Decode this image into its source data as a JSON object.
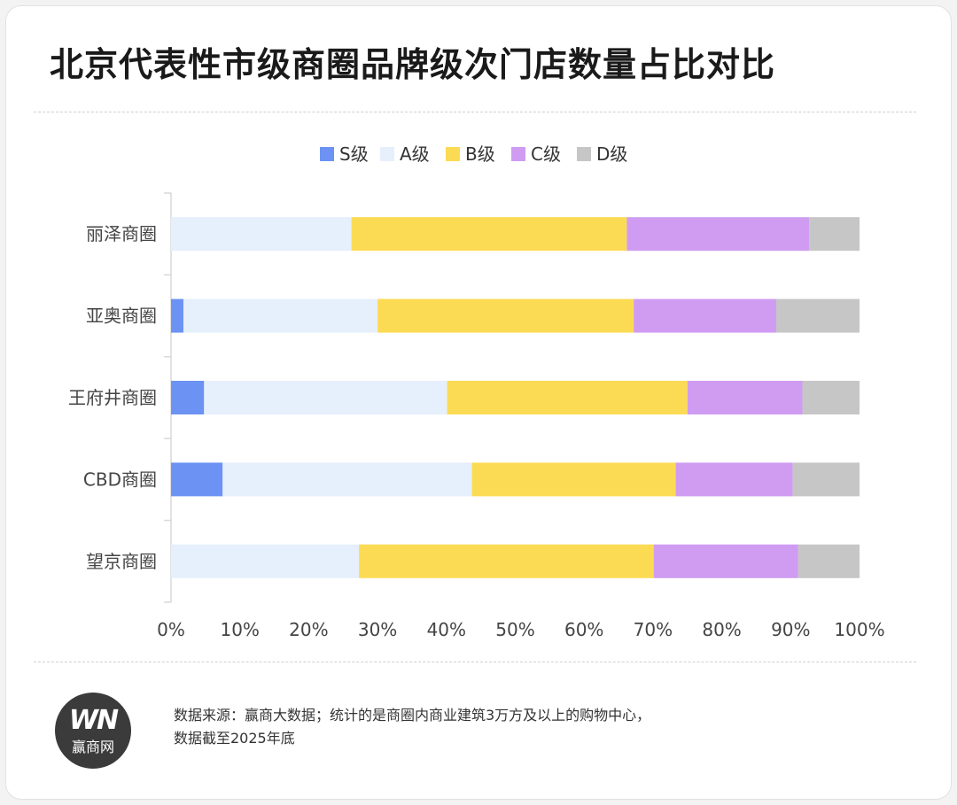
{
  "chart_data": {
    "type": "bar",
    "orientation": "horizontal",
    "stacked": true,
    "title": "北京代表性市级商圈品牌级次门店数量占比对比",
    "categories": [
      "丽泽商圈",
      "亚奥商圈",
      "王府井商圈",
      "CBD商圈",
      "望京商圈"
    ],
    "series": [
      {
        "name": "S级",
        "color": "#6c93f3",
        "values": [
          0,
          1.8,
          4.8,
          7.5,
          0
        ]
      },
      {
        "name": "A级",
        "color": "#e6effc",
        "values": [
          26.2,
          28.2,
          35.3,
          36.2,
          27.3
        ]
      },
      {
        "name": "B级",
        "color": "#fcdb54",
        "values": [
          40.0,
          37.2,
          34.9,
          29.6,
          42.8
        ]
      },
      {
        "name": "C级",
        "color": "#cf9cf2",
        "values": [
          26.5,
          20.7,
          16.7,
          17.0,
          21.0
        ]
      },
      {
        "name": "D级",
        "color": "#c6c6c6",
        "values": [
          7.3,
          12.1,
          8.3,
          9.7,
          8.9
        ]
      }
    ],
    "xlim": [
      0,
      100
    ],
    "x_ticks": [
      "0%",
      "10%",
      "20%",
      "30%",
      "40%",
      "50%",
      "60%",
      "70%",
      "80%",
      "90%",
      "100%"
    ],
    "legend_position": "top",
    "grid": false
  },
  "footer": {
    "logo_mark": "WN",
    "logo_name": "赢商网",
    "source_line1": "数据来源：赢商大数据；统计的是商圈内商业建筑3万方及以上的购物中心，",
    "source_line2": "数据截至2025年底"
  }
}
